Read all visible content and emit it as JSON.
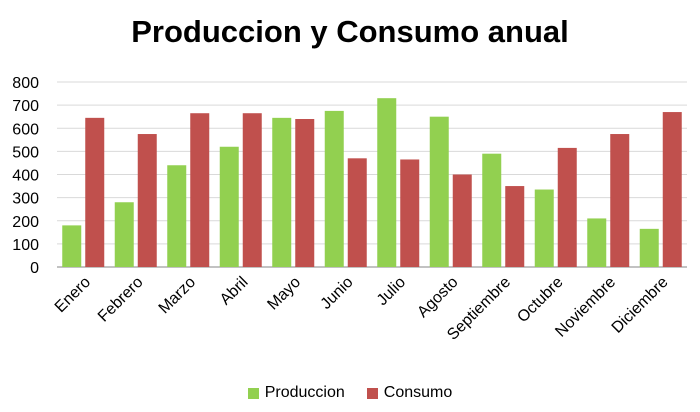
{
  "chart_data": {
    "type": "bar",
    "title": "Produccion y Consumo anual",
    "xlabel": "",
    "ylabel": "",
    "ylim": [
      0,
      800
    ],
    "yticks": [
      0,
      100,
      200,
      300,
      400,
      500,
      600,
      700,
      800
    ],
    "grid": true,
    "legend_position": "bottom",
    "categories": [
      "Enero",
      "Febrero",
      "Marzo",
      "Abril",
      "Mayo",
      "Junio",
      "Julio",
      "Agosto",
      "Septiembre",
      "Octubre",
      "Noviembre",
      "Diciembre"
    ],
    "series": [
      {
        "name": "Produccion",
        "color": "#92d050",
        "values": [
          180,
          280,
          440,
          520,
          645,
          675,
          730,
          650,
          490,
          335,
          210,
          165
        ]
      },
      {
        "name": "Consumo",
        "color": "#c0504d",
        "values": [
          645,
          575,
          665,
          665,
          640,
          470,
          465,
          400,
          350,
          515,
          575,
          670
        ]
      }
    ]
  }
}
